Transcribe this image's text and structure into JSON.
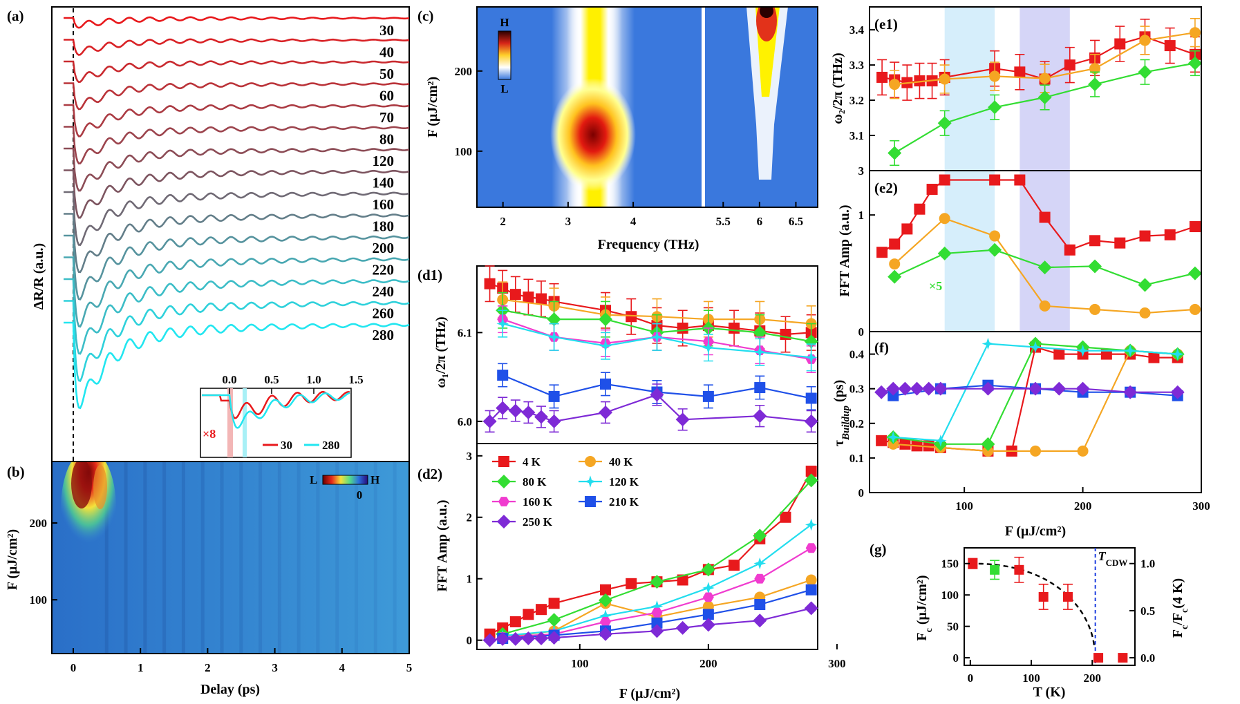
{
  "colors": {
    "s4K": "#e8191c",
    "s40K": "#f5a623",
    "s80K": "#33dd33",
    "s120K": "#22ddee",
    "s160K": "#f03ccf",
    "s210K": "#1f50e8",
    "s250K": "#7e2ad6",
    "band1": "#d6eefb",
    "band2": "#d5d5f7",
    "bg_map": "#3a78dd"
  },
  "panel_a": {
    "label": "(a)",
    "ylabel": "ΔR/R (a.u.)",
    "trace_labels": [
      "30",
      "40",
      "50",
      "60",
      "70",
      "80",
      "120",
      "140",
      "160",
      "180",
      "200",
      "220",
      "240",
      "260",
      "280"
    ],
    "inset": {
      "ticks": [
        "0.0",
        "0.5",
        "1.0",
        "1.5"
      ],
      "scale_label": "×8",
      "legend": [
        "30",
        "280"
      ]
    }
  },
  "panel_b": {
    "label": "(b)",
    "xlabel": "Delay (ps)",
    "ylabel": "F (μJ/cm²)",
    "xticks": [
      "0",
      "1",
      "2",
      "3",
      "4",
      "5"
    ],
    "yticks": [
      "100",
      "200"
    ],
    "colorbar": {
      "low": "L",
      "high": "H",
      "zero": "0"
    }
  },
  "panel_c": {
    "label": "(c)",
    "xlabel": "Frequency (THz)",
    "ylabel": "F (μJ/cm²)",
    "xticks_left": [
      "2",
      "3",
      "4"
    ],
    "xticks_right": [
      "5.5",
      "6",
      "6.5"
    ],
    "yticks": [
      "100",
      "200"
    ],
    "colorbar": {
      "high": "H",
      "low": "L"
    }
  },
  "panel_d1": {
    "label": "(d1)",
    "ylabel": "ω₁/2π (THz)",
    "yticks": [
      "6.0",
      "6.1"
    ]
  },
  "panel_d2": {
    "label": "(d2)",
    "xlabel": "F (μJ/cm²)",
    "ylabel": "FFT Amp (a.u.)",
    "xticks": [
      "100",
      "200",
      "300"
    ],
    "yticks": [
      "0",
      "1",
      "2",
      "3"
    ],
    "legend": [
      "4 K",
      "40 K",
      "80 K",
      "120 K",
      "160 K",
      "210 K",
      "250 K"
    ]
  },
  "panel_e1": {
    "label": "(e1)",
    "ylabel": "ω₂/2π (THz)",
    "yticks": [
      "3",
      "3.1",
      "3.2",
      "3.3",
      "3.4"
    ]
  },
  "panel_e2": {
    "label": "(e2)",
    "ylabel": "FFT Amp (a.u.)",
    "yticks": [
      "0",
      "1"
    ],
    "annotation": "×5"
  },
  "panel_f": {
    "label": "(f)",
    "xlabel": "F (μJ/cm²)",
    "ylabel": "τ",
    "ylabel_sub": "Buildup",
    "ylabel_unit": " (ps)",
    "xticks": [
      "100",
      "200",
      "300"
    ],
    "yticks": [
      "0",
      "0.1",
      "0.2",
      "0.3",
      "0.4"
    ]
  },
  "panel_g": {
    "label": "(g)",
    "xlabel": "T (K)",
    "ylabel": "F",
    "ylabel_sub": "c",
    "ylabel_unit": " (μJ/cm²)",
    "ylabel_right": "F",
    "ylabel_right_sub": "c",
    "ylabel_right_mid": "/F",
    "ylabel_right_sub2": "c",
    "ylabel_right_end": "(4 K)",
    "xticks": [
      "0",
      "100",
      "200"
    ],
    "yticks": [
      "0",
      "50",
      "100",
      "150"
    ],
    "yticks_right": [
      "0.0",
      "0.5",
      "1.0"
    ],
    "tcdw_label": "T",
    "tcdw_sub": "CDW"
  },
  "chart_data": [
    {
      "panel": "d1",
      "type": "scatter",
      "xlim": [
        20,
        285
      ],
      "ylim": [
        5.975,
        6.175
      ],
      "series": [
        {
          "key": "4K",
          "marker": "square",
          "x": [
            30,
            40,
            50,
            60,
            70,
            80,
            120,
            140,
            160,
            180,
            200,
            220,
            240,
            260,
            280
          ],
          "y": [
            6.155,
            6.15,
            6.143,
            6.14,
            6.138,
            6.135,
            6.125,
            6.118,
            6.108,
            6.105,
            6.108,
            6.105,
            6.102,
            6.098,
            6.1
          ],
          "err": [
            0.02,
            0.02,
            0.02,
            0.02,
            0.02,
            0.02,
            0.02,
            0.02,
            0.02,
            0.02,
            0.02,
            0.02,
            0.02,
            0.02,
            0.02
          ]
        },
        {
          "key": "40K",
          "marker": "circle",
          "x": [
            40,
            80,
            120,
            160,
            200,
            240,
            280
          ],
          "y": [
            6.137,
            6.13,
            6.12,
            6.118,
            6.115,
            6.115,
            6.11
          ],
          "err": [
            0.02,
            0.02,
            0.02,
            0.02,
            0.02,
            0.02,
            0.02
          ]
        },
        {
          "key": "80K",
          "marker": "diamond",
          "x": [
            40,
            80,
            120,
            160,
            200,
            240,
            280
          ],
          "y": [
            6.125,
            6.115,
            6.115,
            6.1,
            6.105,
            6.1,
            6.09
          ],
          "err": [
            0.02,
            0.02,
            0.02,
            0.02,
            0.02,
            0.02,
            0.02
          ]
        },
        {
          "key": "160K",
          "marker": "hexagon",
          "x": [
            40,
            80,
            120,
            160,
            200,
            240,
            280
          ],
          "y": [
            6.115,
            6.095,
            6.088,
            6.095,
            6.09,
            6.08,
            6.07
          ],
          "err": [
            0.015,
            0.015,
            0.015,
            0.015,
            0.015,
            0.015,
            0.015
          ]
        },
        {
          "key": "120K",
          "marker": "star",
          "x": [
            40,
            80,
            120,
            160,
            200,
            240,
            280
          ],
          "y": [
            6.11,
            6.095,
            6.085,
            6.095,
            6.083,
            6.078,
            6.072
          ],
          "err": [
            0.015,
            0.015,
            0.015,
            0.015,
            0.015,
            0.015,
            0.015
          ]
        },
        {
          "key": "210K",
          "marker": "square",
          "x": [
            40,
            80,
            120,
            160,
            200,
            240,
            280
          ],
          "y": [
            6.052,
            6.028,
            6.042,
            6.033,
            6.028,
            6.038,
            6.026
          ],
          "err": [
            0.013,
            0.013,
            0.013,
            0.013,
            0.013,
            0.013,
            0.013
          ]
        },
        {
          "key": "250K",
          "marker": "diamond",
          "x": [
            30,
            40,
            50,
            60,
            70,
            80,
            120,
            160,
            180,
            240,
            280
          ],
          "y": [
            6.0,
            6.015,
            6.012,
            6.01,
            6.005,
            6.0,
            6.01,
            6.03,
            6.002,
            6.006,
            6.0
          ],
          "err": [
            0.012,
            0.012,
            0.012,
            0.012,
            0.012,
            0.012,
            0.012,
            0.012,
            0.012,
            0.012,
            0.012
          ]
        }
      ]
    },
    {
      "panel": "d2",
      "type": "line",
      "xlabel": "F (μJ/cm²)",
      "ylabel": "FFT Amp (a.u.)",
      "xlim": [
        20,
        285
      ],
      "ylim": [
        -0.15,
        3.2
      ],
      "series": [
        {
          "key": "4K",
          "name": "4 K",
          "marker": "square",
          "x": [
            30,
            40,
            50,
            60,
            70,
            80,
            120,
            140,
            160,
            180,
            200,
            220,
            240,
            260,
            280
          ],
          "y": [
            0.1,
            0.2,
            0.3,
            0.42,
            0.5,
            0.6,
            0.82,
            0.92,
            0.95,
            0.98,
            1.15,
            1.22,
            1.65,
            2.0,
            2.75
          ]
        },
        {
          "key": "40K",
          "name": "40 K",
          "marker": "circle",
          "x": [
            40,
            80,
            120,
            160,
            200,
            240,
            280
          ],
          "y": [
            0.05,
            0.15,
            0.6,
            0.38,
            0.55,
            0.7,
            0.98
          ]
        },
        {
          "key": "80K",
          "name": "80 K",
          "marker": "diamond",
          "x": [
            40,
            80,
            120,
            160,
            200,
            240,
            280
          ],
          "y": [
            0.1,
            0.33,
            0.65,
            0.95,
            1.15,
            1.7,
            2.6
          ]
        },
        {
          "key": "120K",
          "name": "120 K",
          "marker": "star",
          "x": [
            40,
            80,
            120,
            160,
            200,
            240,
            280
          ],
          "y": [
            0.07,
            0.15,
            0.4,
            0.55,
            0.85,
            1.25,
            1.88
          ]
        },
        {
          "key": "160K",
          "name": "160 K",
          "marker": "hexagon",
          "x": [
            40,
            80,
            120,
            160,
            200,
            240,
            280
          ],
          "y": [
            0.05,
            0.1,
            0.3,
            0.45,
            0.7,
            1.0,
            1.5
          ]
        },
        {
          "key": "210K",
          "name": "210 K",
          "marker": "square",
          "x": [
            40,
            80,
            120,
            160,
            200,
            240,
            280
          ],
          "y": [
            0.03,
            0.08,
            0.15,
            0.28,
            0.42,
            0.58,
            0.82
          ]
        },
        {
          "key": "250K",
          "name": "250 K",
          "marker": "diamond",
          "x": [
            30,
            40,
            50,
            60,
            70,
            80,
            120,
            160,
            180,
            200,
            240,
            280
          ],
          "y": [
            0.0,
            0.02,
            0.02,
            0.03,
            0.03,
            0.04,
            0.1,
            0.15,
            0.2,
            0.25,
            0.32,
            0.52
          ]
        }
      ]
    },
    {
      "panel": "e1",
      "type": "scatter",
      "xlim": [
        20,
        285
      ],
      "ylim": [
        3.0,
        3.465
      ],
      "bands": [
        [
          80,
          120
        ],
        [
          140,
          180
        ]
      ],
      "series": [
        {
          "key": "4K",
          "marker": "square",
          "x": [
            30,
            40,
            50,
            60,
            70,
            80,
            120,
            140,
            160,
            180,
            200,
            220,
            240,
            260,
            280
          ],
          "y": [
            3.265,
            3.258,
            3.25,
            3.255,
            3.255,
            3.265,
            3.29,
            3.28,
            3.26,
            3.3,
            3.32,
            3.36,
            3.38,
            3.355,
            3.33
          ],
          "err": [
            0.05,
            0.05,
            0.05,
            0.05,
            0.05,
            0.05,
            0.05,
            0.05,
            0.05,
            0.05,
            0.05,
            0.05,
            0.05,
            0.05,
            0.05
          ]
        },
        {
          "key": "40K",
          "marker": "circle",
          "x": [
            40,
            80,
            120,
            160,
            200,
            240,
            280
          ],
          "y": [
            3.245,
            3.26,
            3.268,
            3.262,
            3.29,
            3.37,
            3.392
          ],
          "err": [
            0.04,
            0.04,
            0.04,
            0.04,
            0.04,
            0.04,
            0.04
          ]
        },
        {
          "key": "80K",
          "marker": "diamond",
          "x": [
            40,
            80,
            120,
            160,
            200,
            240,
            280
          ],
          "y": [
            3.05,
            3.135,
            3.18,
            3.208,
            3.245,
            3.28,
            3.305
          ],
          "err": [
            0.035,
            0.035,
            0.035,
            0.035,
            0.035,
            0.035,
            0.035
          ]
        }
      ]
    },
    {
      "panel": "e2",
      "type": "line",
      "xlim": [
        20,
        285
      ],
      "ylim": [
        0,
        1.38
      ],
      "bands": [
        [
          80,
          120
        ],
        [
          140,
          180
        ]
      ],
      "series": [
        {
          "key": "4K",
          "marker": "square",
          "x": [
            30,
            40,
            50,
            60,
            70,
            80,
            120,
            140,
            160,
            180,
            200,
            220,
            240,
            260,
            280
          ],
          "y": [
            0.68,
            0.75,
            0.88,
            1.05,
            1.22,
            1.3,
            1.3,
            1.3,
            0.98,
            0.7,
            0.78,
            0.76,
            0.82,
            0.83,
            0.9
          ]
        },
        {
          "key": "40K",
          "marker": "circle",
          "x": [
            40,
            80,
            120,
            160,
            200,
            240,
            280
          ],
          "y": [
            0.58,
            0.97,
            0.82,
            0.22,
            0.19,
            0.16,
            0.19
          ]
        },
        {
          "key": "80K",
          "marker": "diamond",
          "x": [
            40,
            80,
            120,
            160,
            200,
            240,
            280
          ],
          "y": [
            0.47,
            0.67,
            0.7,
            0.55,
            0.56,
            0.4,
            0.5
          ]
        }
      ]
    },
    {
      "panel": "f",
      "type": "line",
      "xlabel": "F (μJ/cm²)",
      "xlim": [
        20,
        300
      ],
      "ylim": [
        0,
        0.465
      ],
      "series": [
        {
          "key": "4K",
          "marker": "square",
          "x": [
            30,
            40,
            50,
            60,
            70,
            80,
            120,
            140,
            160,
            180,
            200,
            220,
            240,
            260,
            280
          ],
          "y": [
            0.15,
            0.145,
            0.14,
            0.135,
            0.135,
            0.13,
            0.12,
            0.12,
            0.42,
            0.4,
            0.4,
            0.4,
            0.4,
            0.39,
            0.39
          ]
        },
        {
          "key": "40K",
          "marker": "circle",
          "x": [
            40,
            80,
            120,
            160,
            200,
            240,
            280
          ],
          "y": [
            0.14,
            0.13,
            0.12,
            0.12,
            0.12,
            0.41,
            0.4
          ]
        },
        {
          "key": "80K",
          "marker": "diamond",
          "x": [
            40,
            80,
            120,
            160,
            200,
            240,
            280
          ],
          "y": [
            0.16,
            0.14,
            0.14,
            0.43,
            0.42,
            0.41,
            0.4
          ]
        },
        {
          "key": "120K",
          "marker": "star",
          "x": [
            40,
            80,
            120,
            160,
            200,
            240,
            280
          ],
          "y": [
            0.16,
            0.15,
            0.43,
            0.42,
            0.41,
            0.41,
            0.4
          ]
        },
        {
          "key": "210K",
          "marker": "square",
          "x": [
            40,
            80,
            120,
            160,
            200,
            240,
            280
          ],
          "y": [
            0.28,
            0.3,
            0.31,
            0.3,
            0.29,
            0.29,
            0.28
          ]
        },
        {
          "key": "250K",
          "marker": "diamond",
          "x": [
            30,
            40,
            50,
            60,
            70,
            80,
            120,
            160,
            180,
            200,
            240,
            280
          ],
          "y": [
            0.29,
            0.3,
            0.3,
            0.3,
            0.3,
            0.3,
            0.3,
            0.3,
            0.3,
            0.3,
            0.29,
            0.29
          ]
        }
      ]
    },
    {
      "panel": "g",
      "type": "scatter",
      "xlabel": "T (K)",
      "xlim": [
        -10,
        270
      ],
      "ylim": [
        -12,
        175
      ],
      "tcdw": 205,
      "series": [
        {
          "key": "4K",
          "marker": "square",
          "x": [
            4,
            80,
            120,
            160,
            210,
            250
          ],
          "y": [
            150,
            140,
            97,
            97,
            0,
            0
          ],
          "err": [
            8,
            20,
            20,
            20,
            0,
            0
          ]
        },
        {
          "key": "80K",
          "marker": "square",
          "x": [
            40
          ],
          "y": [
            140
          ],
          "err": [
            15
          ]
        }
      ]
    }
  ]
}
